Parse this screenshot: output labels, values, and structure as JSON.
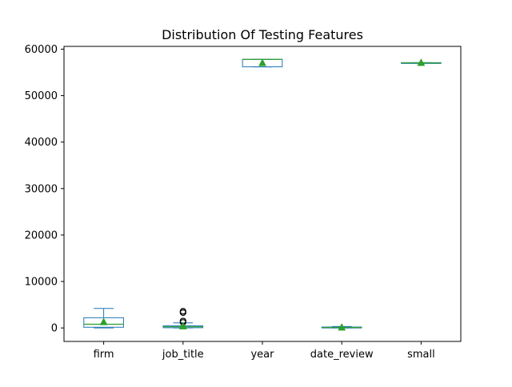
{
  "chart_data": {
    "type": "box",
    "title": "Distribution Of Testing Features",
    "xlabel": "",
    "ylabel": "",
    "ylim": [
      -2900,
      60600
    ],
    "yticks": [
      0,
      10000,
      20000,
      30000,
      40000,
      50000,
      60000
    ],
    "grid": false,
    "colors": {
      "box": "#1f77b4",
      "median": "#2ca02c",
      "mean_marker": "#2ca02c",
      "outlier": "#000000"
    },
    "categories": [
      "firm",
      "job_title",
      "year",
      "date_review",
      "small"
    ],
    "series": [
      {
        "category": "firm",
        "whisker_low": 0,
        "q1": 150,
        "median": 800,
        "q3": 2200,
        "whisker_high": 4200,
        "mean": 1250,
        "outliers": []
      },
      {
        "category": "job_title",
        "whisker_low": 0,
        "q1": 50,
        "median": 250,
        "q3": 450,
        "whisker_high": 1100,
        "mean": 350,
        "outliers": [
          1200,
          1500,
          3300,
          3600
        ]
      },
      {
        "category": "year",
        "whisker_low": 56200,
        "q1": 56200,
        "median": 57800,
        "q3": 57800,
        "whisker_high": 57800,
        "mean": 57000,
        "outliers": []
      },
      {
        "category": "date_review",
        "whisker_low": 0,
        "q1": 0,
        "median": 100,
        "q3": 200,
        "whisker_high": 300,
        "mean": 100,
        "outliers": []
      },
      {
        "category": "small",
        "whisker_low": 57000,
        "q1": 57000,
        "median": 57050,
        "q3": 57100,
        "whisker_high": 57100,
        "mean": 57050,
        "outliers": []
      }
    ]
  }
}
